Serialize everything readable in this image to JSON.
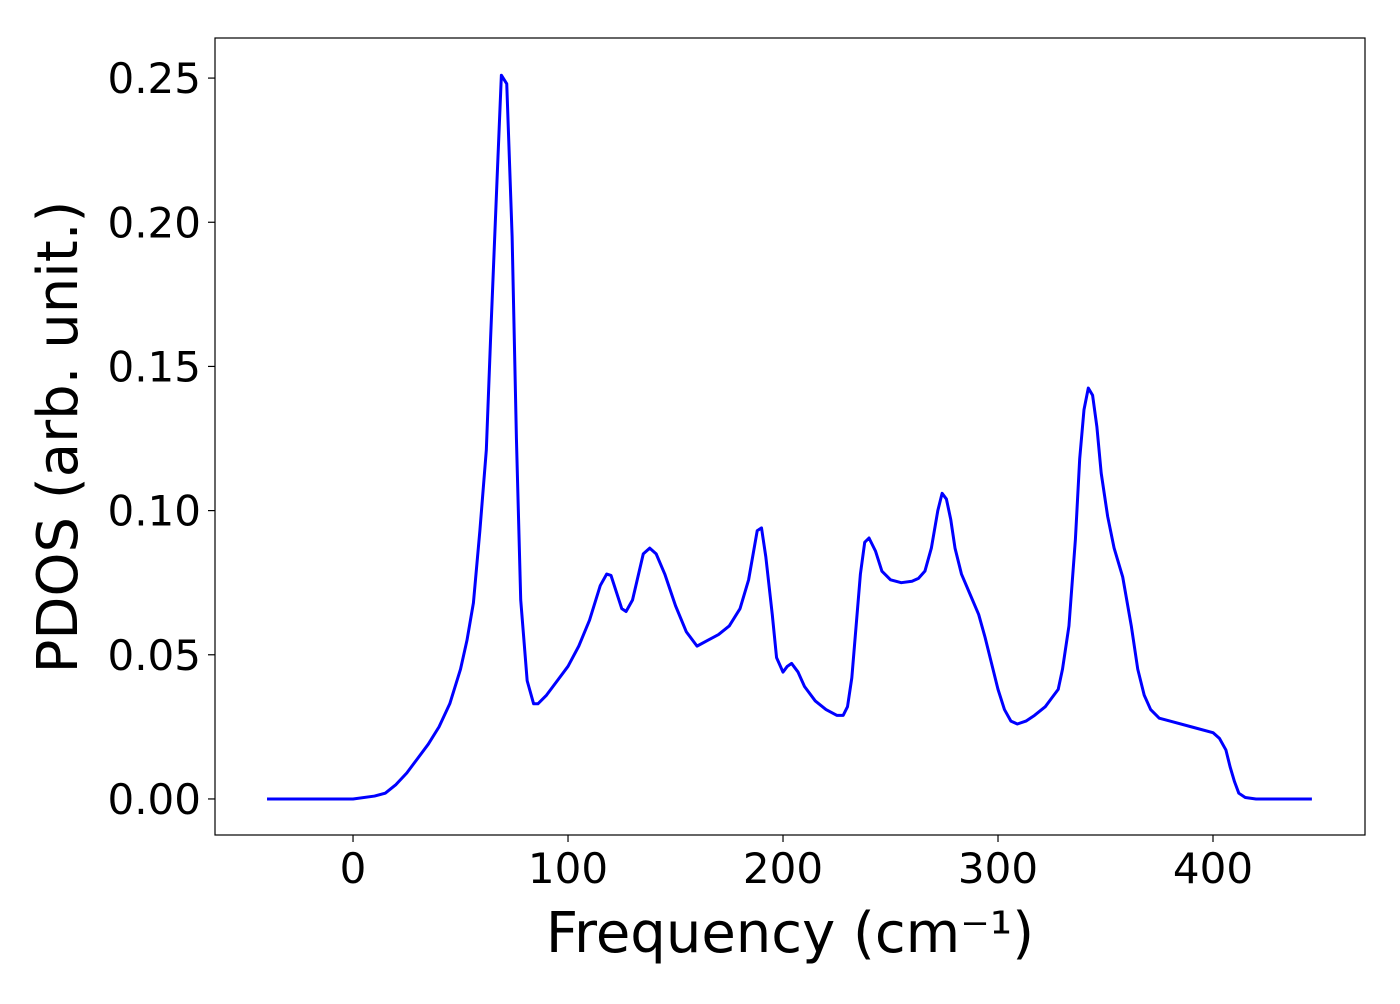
{
  "chart_data": {
    "type": "line",
    "xlabel": "Frequency (cm⁻¹)",
    "ylabel": "PDOS (arb. unit.)",
    "x": [
      -40,
      0,
      10,
      15,
      20,
      25,
      30,
      35,
      40,
      45,
      50,
      53,
      56,
      59,
      62,
      64,
      67,
      69,
      71.5,
      74,
      76,
      78,
      81,
      84,
      86,
      90,
      95,
      100,
      105,
      110,
      115,
      118,
      120,
      125,
      127,
      130,
      135,
      138,
      141,
      145,
      150,
      155,
      160,
      165,
      170,
      175,
      180,
      184,
      188,
      190,
      192,
      195,
      197,
      200,
      202,
      204,
      207,
      210,
      215,
      220,
      225,
      228,
      230,
      232,
      234,
      236,
      238,
      240,
      243,
      246,
      250,
      255,
      260,
      263,
      266,
      269,
      272,
      274,
      276,
      278,
      280,
      283,
      287,
      291,
      294,
      297,
      300,
      303,
      306,
      309,
      313,
      317,
      322,
      325,
      328,
      330,
      333,
      336,
      338,
      340,
      342,
      344,
      346,
      348,
      351,
      354,
      358,
      362,
      365,
      368,
      371,
      375,
      380,
      390,
      400,
      403,
      406,
      408,
      410,
      412,
      415,
      420,
      446
    ],
    "series": [
      {
        "name": "PDOS",
        "color": "#0000ff",
        "values": [
          0,
          0,
          0.001,
          0.002,
          0.005,
          0.009,
          0.014,
          0.019,
          0.025,
          0.033,
          0.045,
          0.055,
          0.068,
          0.093,
          0.121,
          0.16,
          0.215,
          0.251,
          0.248,
          0.195,
          0.125,
          0.069,
          0.041,
          0.033,
          0.033,
          0.036,
          0.041,
          0.046,
          0.053,
          0.062,
          0.074,
          0.078,
          0.0775,
          0.066,
          0.065,
          0.069,
          0.085,
          0.087,
          0.085,
          0.078,
          0.067,
          0.058,
          0.053,
          0.055,
          0.057,
          0.06,
          0.066,
          0.076,
          0.093,
          0.094,
          0.084,
          0.064,
          0.049,
          0.044,
          0.046,
          0.047,
          0.044,
          0.039,
          0.034,
          0.031,
          0.029,
          0.029,
          0.032,
          0.042,
          0.06,
          0.078,
          0.089,
          0.0905,
          0.086,
          0.079,
          0.076,
          0.075,
          0.0755,
          0.0765,
          0.079,
          0.087,
          0.1,
          0.106,
          0.104,
          0.097,
          0.087,
          0.078,
          0.071,
          0.064,
          0.056,
          0.047,
          0.038,
          0.031,
          0.027,
          0.026,
          0.027,
          0.029,
          0.032,
          0.035,
          0.038,
          0.045,
          0.06,
          0.09,
          0.118,
          0.135,
          0.1425,
          0.14,
          0.129,
          0.113,
          0.098,
          0.087,
          0.077,
          0.06,
          0.045,
          0.036,
          0.031,
          0.028,
          0.027,
          0.025,
          0.023,
          0.021,
          0.017,
          0.011,
          0.006,
          0.002,
          0.0005,
          0,
          0
        ]
      }
    ],
    "xlim": [
      -64.2,
      470.7
    ],
    "ylim": [
      -0.0125,
      0.2639
    ],
    "xticks": [
      0,
      100,
      200,
      300,
      400
    ],
    "yticks": [
      {
        "value": 0,
        "label": "0.00"
      },
      {
        "value": 0.05,
        "label": "0.05"
      },
      {
        "value": 0.1,
        "label": "0.10"
      },
      {
        "value": 0.15,
        "label": "0.15"
      },
      {
        "value": 0.2,
        "label": "0.20"
      },
      {
        "value": 0.25,
        "label": "0.25"
      }
    ],
    "grid": false
  }
}
